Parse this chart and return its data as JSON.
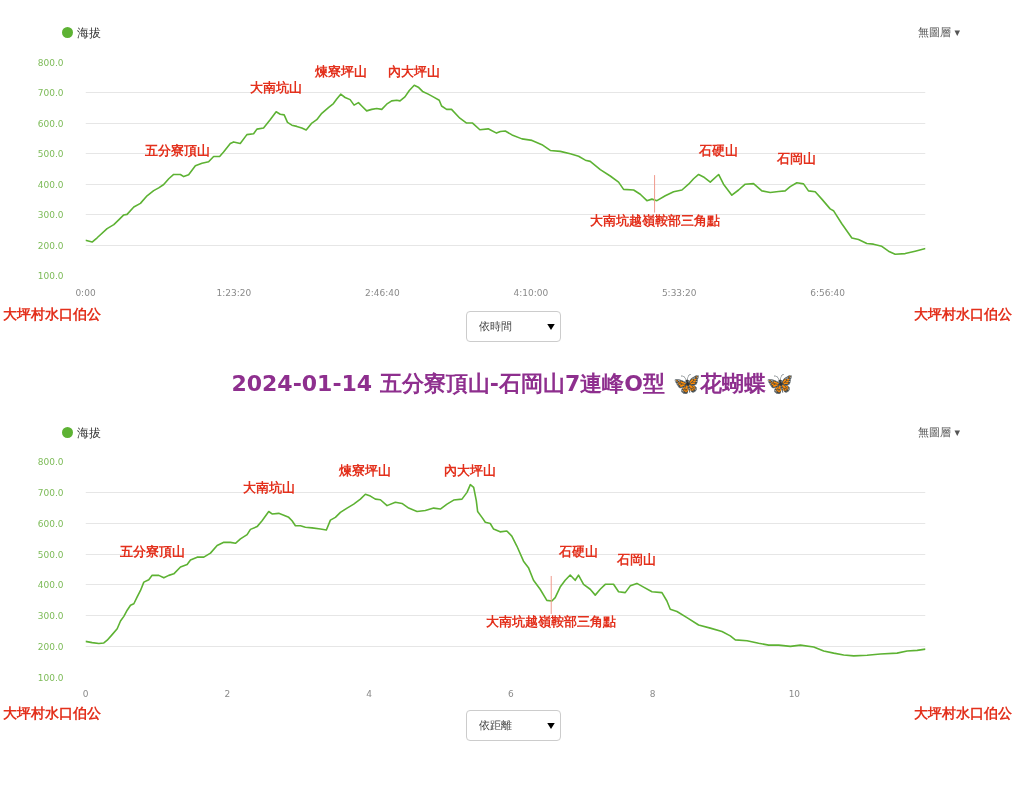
{
  "chart_data": [
    {
      "type": "line",
      "x": [
        0,
        0.062,
        0.109,
        0.202,
        0.265,
        0.311,
        0.358,
        0.389,
        0.452,
        0.514,
        0.576,
        0.638,
        0.685,
        0.732,
        0.779,
        0.825,
        0.888,
        0.919,
        0.965,
        1.028,
        1.09,
        1.152,
        1.199,
        1.255,
        1.292,
        1.355,
        1.386,
        1.448,
        1.51,
        1.573,
        1.604,
        1.666,
        1.728,
        1.784,
        1.822,
        1.859,
        1.89,
        1.931,
        1.977,
        2.024,
        2.065,
        2.118,
        2.164,
        2.211,
        2.273,
        2.32,
        2.351,
        2.388,
        2.429,
        2.476,
        2.513,
        2.554,
        2.585,
        2.631,
        2.678,
        2.725,
        2.772,
        2.818,
        2.865,
        2.912,
        2.943,
        2.989,
        3.03,
        3.076,
        3.114,
        3.154,
        3.207,
        3.254,
        3.31,
        3.332,
        3.379,
        3.425,
        3.503,
        3.566,
        3.622,
        3.69,
        3.768,
        3.846,
        3.882,
        3.928,
        3.991,
        4.084,
        4.178,
        4.271,
        4.349,
        4.443,
        4.536,
        4.614,
        4.677,
        4.723,
        4.817,
        4.91,
        4.988,
        5.035,
        5.129,
        5.191,
        5.253,
        5.3,
        5.347,
        5.425,
        5.503,
        5.581,
        5.643,
        5.69,
        5.737,
        5.783,
        5.846,
        5.924,
        5.97,
        6.048,
        6.111,
        6.173,
        6.251,
        6.329,
        6.407,
        6.485,
        6.547,
        6.594,
        6.656,
        6.719,
        6.765,
        6.828,
        6.89,
        6.968,
        6.999,
        7.077,
        7.171,
        7.233,
        7.311,
        7.373,
        7.451,
        7.514,
        7.576,
        7.67,
        7.763,
        7.86
      ],
      "series": [
        {
          "name": "海拔",
          "color": "#5db233",
          "values": [
            216,
            210,
            224,
            254,
            267,
            283,
            299,
            301,
            325,
            337,
            362,
            379,
            388,
            399,
            418,
            432,
            432,
            425,
            431,
            461,
            469,
            474,
            491,
            491,
            506,
            534,
            539,
            534,
            563,
            566,
            581,
            585,
            612,
            638,
            630,
            628,
            603,
            594,
            590,
            585,
            578,
            601,
            612,
            633,
            652,
            665,
            680,
            696,
            685,
            678,
            660,
            668,
            657,
            641,
            646,
            649,
            646,
            663,
            674,
            676,
            674,
            687,
            708,
            725,
            719,
            705,
            696,
            687,
            676,
            657,
            646,
            646,
            617,
            601,
            601,
            579,
            582,
            568,
            573,
            575,
            562,
            549,
            544,
            530,
            511,
            508,
            500,
            492,
            479,
            475,
            448,
            427,
            407,
            383,
            381,
            367,
            346,
            351,
            346,
            362,
            375,
            381,
            400,
            418,
            432,
            424,
            407,
            432,
            400,
            364,
            381,
            400,
            402,
            378,
            373,
            376,
            378,
            392,
            405,
            401,
            378,
            375,
            351,
            319,
            313,
            270,
            223,
            218,
            205,
            203,
            196,
            180,
            170,
            172,
            180,
            189
          ]
        }
      ],
      "xlim": [
        0,
        7.86
      ],
      "xticks": [
        {
          "value": 0,
          "label": "0:00"
        },
        {
          "value": 1.38889,
          "label": "1:23:20"
        },
        {
          "value": 2.77778,
          "label": "2:46:40"
        },
        {
          "value": 4.16667,
          "label": "4:10:00"
        },
        {
          "value": 5.55556,
          "label": "5:33:20"
        },
        {
          "value": 6.94444,
          "label": "6:56:40"
        }
      ],
      "ylim": [
        100,
        800
      ],
      "yticks": [
        {
          "value": 100,
          "label": "100.0"
        },
        {
          "value": 200,
          "label": "200.0"
        },
        {
          "value": 300,
          "label": "300.0"
        },
        {
          "value": 400,
          "label": "400.0"
        },
        {
          "value": 500,
          "label": "500.0"
        },
        {
          "value": 600,
          "label": "600.0"
        },
        {
          "value": 700,
          "label": "700.0"
        },
        {
          "value": 800,
          "label": "800.0"
        }
      ],
      "grid": "y",
      "legend": "top left",
      "annotations": [
        {
          "text": "五分寮頂山",
          "x": 0.86,
          "y": 432
        },
        {
          "text": "大南坑山",
          "x": 1.784,
          "y": 638
        },
        {
          "text": "煉寮坪山",
          "x": 2.388,
          "y": 696
        },
        {
          "text": "內大坪山",
          "x": 3.076,
          "y": 725
        },
        {
          "text": "大南坑越嶺鞍部三角點",
          "x": 5.325,
          "y": 349
        },
        {
          "text": "石硬山",
          "x": 5.924,
          "y": 432
        },
        {
          "text": "石岡山",
          "x": 6.656,
          "y": 405
        },
        "無圖層 ▾",
        "大坪村水口伯公",
        "依時間",
        "大坪村水口伯公"
      ]
    },
    {
      "type": "line",
      "title": "2024-01-14 五分寮頂山-石岡山7連峰O型 🦋花蝴蝶🦋",
      "x": [
        0,
        0.094,
        0.188,
        0.259,
        0.306,
        0.376,
        0.447,
        0.494,
        0.541,
        0.588,
        0.635,
        0.682,
        0.729,
        0.776,
        0.823,
        0.893,
        0.94,
        1.034,
        1.105,
        1.175,
        1.246,
        1.34,
        1.434,
        1.481,
        1.575,
        1.669,
        1.763,
        1.857,
        1.951,
        2.045,
        2.115,
        2.186,
        2.28,
        2.327,
        2.421,
        2.491,
        2.585,
        2.632,
        2.726,
        2.797,
        2.867,
        2.914,
        2.961,
        3.032,
        3.102,
        3.196,
        3.314,
        3.398,
        3.455,
        3.525,
        3.596,
        3.69,
        3.784,
        3.878,
        3.948,
        4.019,
        4.089,
        4.16,
        4.254,
        4.371,
        4.465,
        4.559,
        4.677,
        4.794,
        4.912,
        5.006,
        5.1,
        5.194,
        5.311,
        5.382,
        5.429,
        5.476,
        5.513,
        5.532,
        5.593,
        5.64,
        5.71,
        5.757,
        5.849,
        5.944,
        6.014,
        6.085,
        6.179,
        6.249,
        6.32,
        6.414,
        6.508,
        6.579,
        6.626,
        6.696,
        6.767,
        6.838,
        6.908,
        6.955,
        7.026,
        7.12,
        7.191,
        7.261,
        7.332,
        7.449,
        7.52,
        7.614,
        7.685,
        7.779,
        7.873,
        7.991,
        8.132,
        8.202,
        8.249,
        8.344,
        8.485,
        8.649,
        8.814,
        8.979,
        9.096,
        9.167,
        9.332,
        9.496,
        9.638,
        9.779,
        9.944,
        10.085,
        10.273,
        10.414,
        10.555,
        10.696,
        10.838,
        11.026,
        11.214,
        11.449,
        11.591,
        11.732,
        11.85
      ],
      "series": [
        {
          "name": "海拔",
          "color": "#5db233",
          "values": [
            217,
            213,
            210,
            212,
            221,
            239,
            258,
            283,
            298,
            318,
            334,
            339,
            361,
            382,
            409,
            417,
            431,
            431,
            423,
            431,
            436,
            458,
            466,
            481,
            490,
            490,
            503,
            528,
            538,
            538,
            535,
            549,
            563,
            580,
            589,
            608,
            638,
            630,
            632,
            626,
            619,
            608,
            592,
            592,
            587,
            585,
            581,
            578,
            610,
            619,
            635,
            649,
            662,
            678,
            694,
            688,
            678,
            676,
            657,
            668,
            664,
            649,
            638,
            641,
            649,
            646,
            662,
            675,
            678,
            700,
            725,
            716,
            673,
            638,
            619,
            603,
            599,
            581,
            572,
            575,
            558,
            526,
            477,
            456,
            415,
            386,
            350,
            348,
            359,
            393,
            415,
            432,
            415,
            432,
            402,
            386,
            367,
            386,
            402,
            402,
            378,
            375,
            397,
            405,
            393,
            378,
            375,
            348,
            321,
            314,
            294,
            270,
            260,
            249,
            235,
            222,
            219,
            211,
            205,
            205,
            201,
            205,
            199,
            186,
            179,
            173,
            170,
            172,
            176,
            179,
            186,
            188,
            192
          ]
        }
      ],
      "xlim": [
        0,
        11.85
      ],
      "xticks": [
        0,
        2,
        4,
        6,
        8,
        10
      ],
      "ylim": [
        100,
        800
      ],
      "yticks": [
        {
          "value": 100,
          "label": "100.0"
        },
        {
          "value": 200,
          "label": "200.0"
        },
        {
          "value": 300,
          "label": "300.0"
        },
        {
          "value": 400,
          "label": "400.0"
        },
        {
          "value": 500,
          "label": "500.0"
        },
        {
          "value": 600,
          "label": "600.0"
        },
        {
          "value": 700,
          "label": "700.0"
        },
        {
          "value": 800,
          "label": "800.0"
        }
      ],
      "grid": "y",
      "legend": "top left",
      "annotations": [
        {
          "text": "五分寮頂山",
          "x": 0.94,
          "y": 431
        },
        {
          "text": "大南坑山",
          "x": 2.585,
          "y": 638
        },
        {
          "text": "煉寮坪山",
          "x": 3.948,
          "y": 694
        },
        {
          "text": "內大坪山",
          "x": 5.429,
          "y": 725
        },
        {
          "text": "大南坑越嶺鞍部三角點",
          "x": 6.57,
          "y": 348
        },
        {
          "text": "石硬山",
          "x": 6.955,
          "y": 432
        },
        {
          "text": "石岡山",
          "x": 7.779,
          "y": 405
        },
        "無圖層 ▾",
        "大坪村水口伯公",
        "依距離",
        "大坪村水口伯公"
      ]
    }
  ]
}
